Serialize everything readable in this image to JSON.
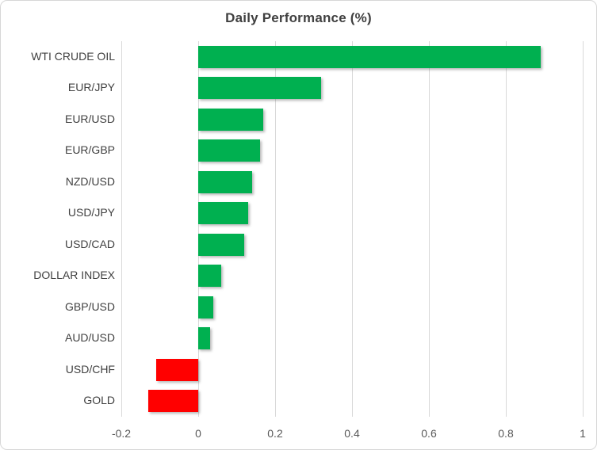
{
  "chart_data": {
    "type": "bar",
    "orientation": "horizontal",
    "title": "Daily Performance (%)",
    "categories": [
      "WTI CRUDE OIL",
      "EUR/JPY",
      "EUR/USD",
      "EUR/GBP",
      "NZD/USD",
      "USD/JPY",
      "USD/CAD",
      "DOLLAR INDEX",
      "GBP/USD",
      "AUD/USD",
      "USD/CHF",
      "GOLD"
    ],
    "values": [
      0.89,
      0.32,
      0.17,
      0.16,
      0.14,
      0.13,
      0.12,
      0.06,
      0.04,
      0.03,
      -0.11,
      -0.13
    ],
    "xlabel": "",
    "ylabel": "",
    "xlim": [
      -0.2,
      1.0
    ],
    "x_ticks": [
      -0.2,
      0,
      0.2,
      0.4,
      0.6,
      0.8,
      1
    ],
    "x_tick_labels": [
      "-0.2",
      "0",
      "0.2",
      "0.4",
      "0.6",
      "0.8",
      "1"
    ],
    "grid": true,
    "legend": false,
    "positive_color": "#00B050",
    "negative_color": "#FF0000",
    "gridline_color": "#D9D9D9",
    "title_color": "#404040",
    "category_label_color": "#404040",
    "tick_label_color": "#595959"
  }
}
